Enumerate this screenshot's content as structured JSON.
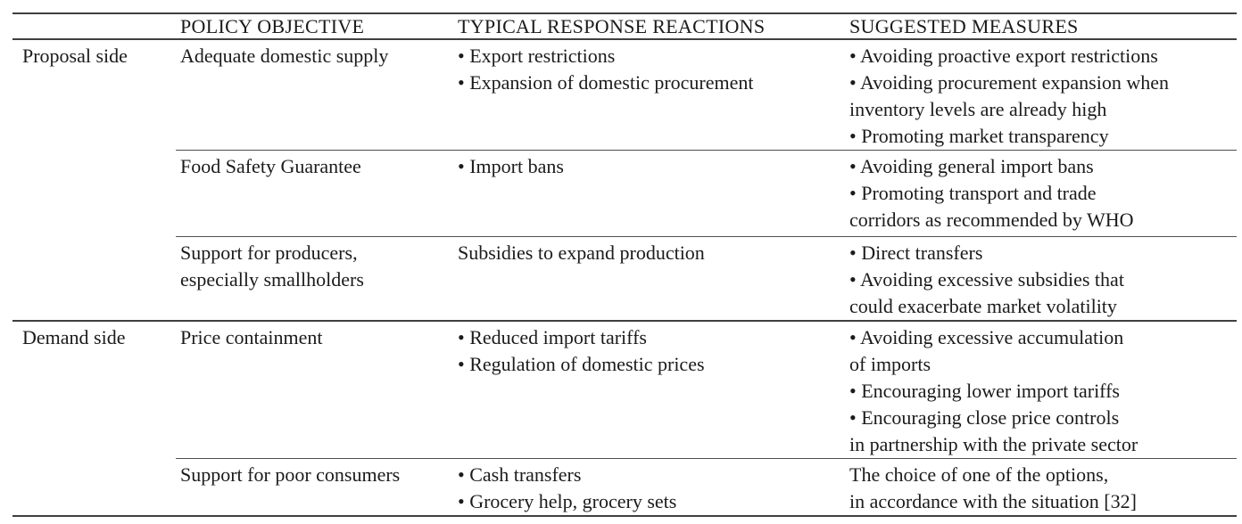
{
  "table": {
    "headers": [
      "",
      "POLICY OBJECTIVE",
      "TYPICAL RESPONSE REACTIONS",
      "SUGGESTED MEASURES"
    ],
    "groups": [
      {
        "side": "Proposal side",
        "rows": [
          {
            "objective": [
              "Adequate domestic supply"
            ],
            "reactions": [
              "• Export restrictions",
              "• Expansion of domestic procurement"
            ],
            "measures": [
              "• Avoiding proactive export restrictions",
              "• Avoiding procurement expansion when",
              "inventory levels are already high",
              "• Promoting market transparency"
            ]
          },
          {
            "objective": [
              "Food Safety Guarantee"
            ],
            "reactions": [
              "• Import bans"
            ],
            "measures": [
              "• Avoiding general import bans",
              "• Promoting transport and trade",
              "corridors as recommended by WHO"
            ]
          },
          {
            "objective": [
              "Support for producers,",
              "especially smallholders"
            ],
            "reactions": [
              "Subsidies to expand production"
            ],
            "measures": [
              "• Direct transfers",
              "• Avoiding excessive subsidies that",
              "could exacerbate market volatility"
            ]
          }
        ]
      },
      {
        "side": "Demand side",
        "rows": [
          {
            "objective": [
              "Price containment"
            ],
            "reactions": [
              "• Reduced import tariffs",
              "• Regulation of domestic prices"
            ],
            "measures": [
              "• Avoiding excessive accumulation",
              "of imports",
              "• Encouraging lower import tariffs",
              "• Encouraging close price controls",
              "in partnership with the private sector"
            ]
          },
          {
            "objective": [
              "Support for poor consumers"
            ],
            "reactions": [
              "• Cash transfers",
              "• Grocery help, grocery sets"
            ],
            "measures": [
              "The choice of one of the options,",
              "in accordance with the situation [32]"
            ]
          }
        ]
      }
    ]
  },
  "colors": {
    "background": "#ffffff",
    "text": "#1b1b1b",
    "rule_major": "#3f3f3f",
    "rule_minor": "#4f4f4f"
  }
}
